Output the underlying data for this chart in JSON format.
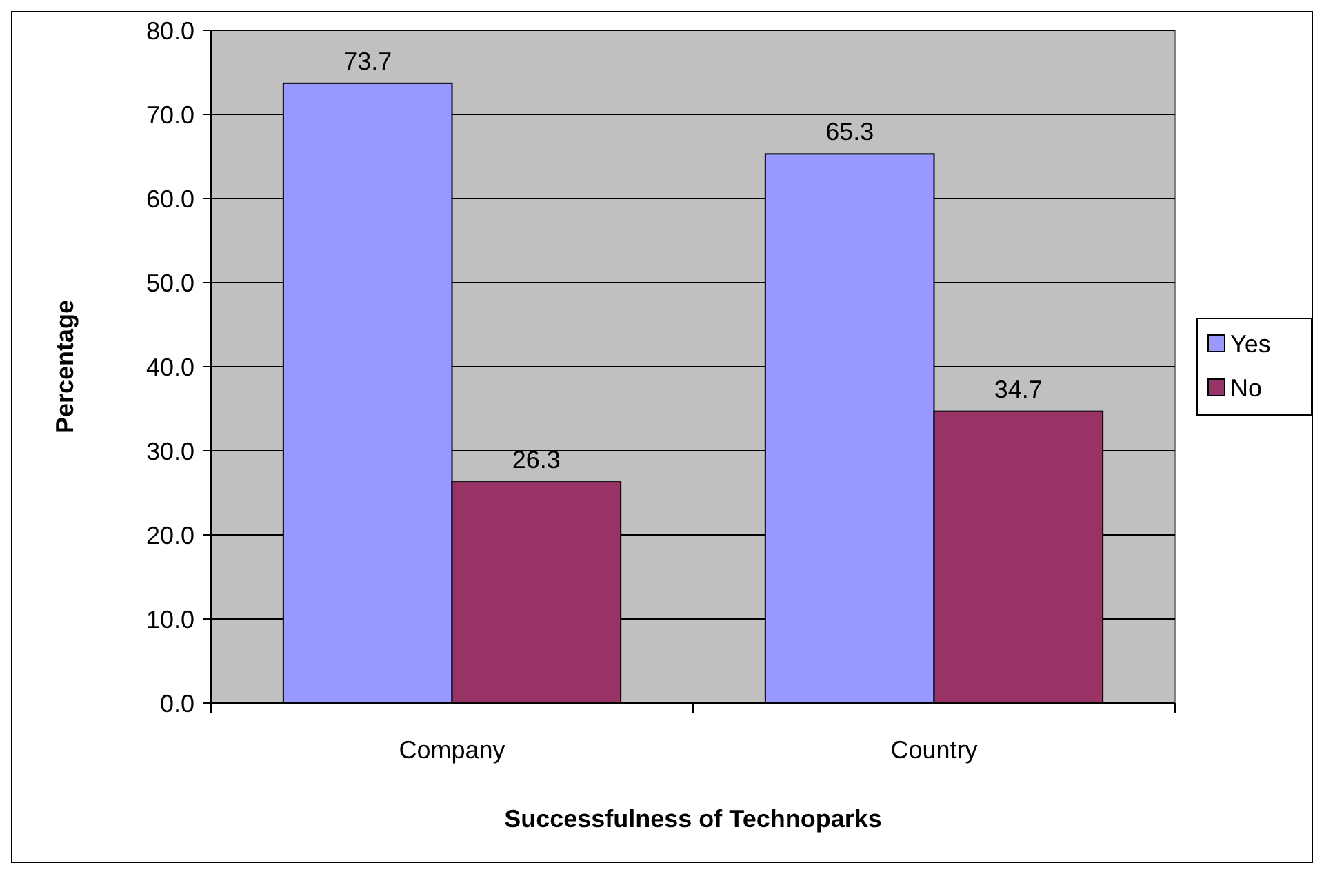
{
  "chart_data": {
    "type": "bar",
    "xlabel": "Successfulness of Technoparks",
    "ylabel": "Percentage",
    "categories": [
      "Company",
      "Country"
    ],
    "series": [
      {
        "name": "Yes",
        "color": "#9999ff",
        "values": [
          73.7,
          65.3
        ]
      },
      {
        "name": "No",
        "color": "#993366",
        "values": [
          26.3,
          34.7
        ]
      }
    ],
    "ylim": [
      0,
      80
    ],
    "yticks": [
      {
        "value": 0,
        "label": "0.0"
      },
      {
        "value": 10,
        "label": "10.0"
      },
      {
        "value": 20,
        "label": "20.0"
      },
      {
        "value": 30,
        "label": "30.0"
      },
      {
        "value": 40,
        "label": "40.0"
      },
      {
        "value": 50,
        "label": "50.0"
      },
      {
        "value": 60,
        "label": "60.0"
      },
      {
        "value": 70,
        "label": "70.0"
      },
      {
        "value": 80,
        "label": "80.0"
      }
    ],
    "grid": "y",
    "legend": "right",
    "data_labels": true
  }
}
